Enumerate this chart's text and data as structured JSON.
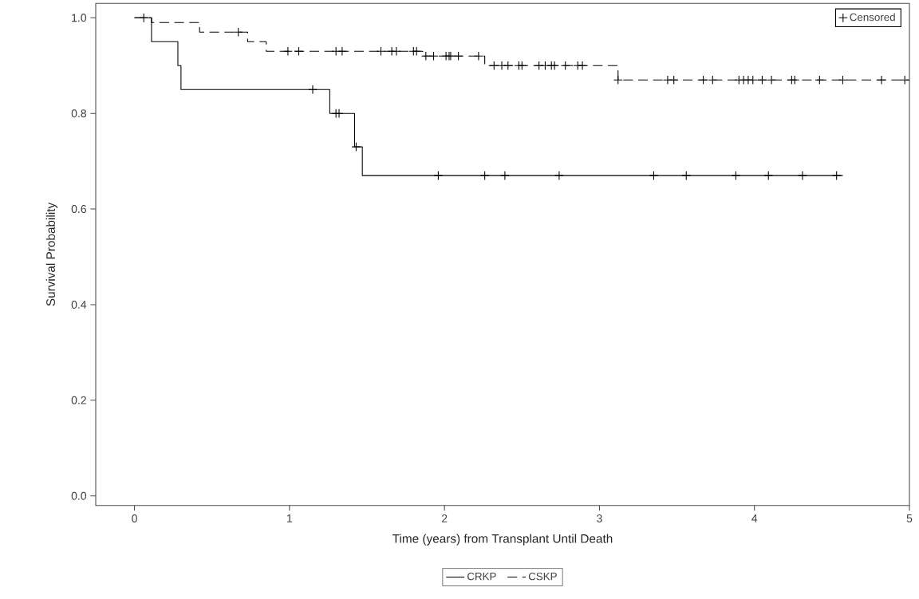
{
  "chart_data": {
    "type": "step",
    "xlabel": "Time (years) from Transplant Until Death",
    "ylabel": "Survival Probability",
    "xlim": [
      -0.25,
      5
    ],
    "ylim": [
      -0.02,
      1.03
    ],
    "xticks": [
      0,
      1,
      2,
      3,
      4,
      5
    ],
    "yticks": [
      {
        "value": 0,
        "label": "0.0"
      },
      {
        "value": 0.2,
        "label": "0.2"
      },
      {
        "value": 0.4,
        "label": "0.4"
      },
      {
        "value": 0.6,
        "label": "0.6"
      },
      {
        "value": 0.8,
        "label": "0.8"
      },
      {
        "value": 1,
        "label": "1.0"
      }
    ],
    "grid": false,
    "legend": "bottom",
    "series": [
      {
        "name": "CRKP",
        "color": "#000000",
        "line_style": "solid",
        "x": [
          0,
          0.11,
          0.28,
          0.3,
          1.26,
          1.42,
          1.47,
          4.57
        ],
        "values": [
          1,
          0.95,
          0.9,
          0.85,
          0.8,
          0.73,
          0.67,
          0.67
        ]
      },
      {
        "name": "CSKP",
        "color": "#000000",
        "line_style": "dashed",
        "x": [
          0,
          0.11,
          0.42,
          0.73,
          0.85,
          1.86,
          2.26,
          3.12,
          5.0
        ],
        "values": [
          1,
          0.99,
          0.97,
          0.95,
          0.93,
          0.92,
          0.9,
          0.87,
          0.87
        ]
      },
      {
        "name": "Censored",
        "type": "scatter",
        "color": "#000000",
        "marker": "cross",
        "x": [
          1.15,
          1.3,
          1.32,
          1.43,
          1.96,
          2.26,
          2.39,
          2.74,
          3.35,
          3.56,
          3.88,
          4.09,
          4.31,
          4.53,
          0.06,
          0.67,
          0.99,
          1.06,
          1.3,
          1.34,
          1.59,
          1.66,
          1.69,
          1.8,
          1.82,
          1.88,
          1.93,
          2.01,
          2.03,
          2.04,
          2.09,
          2.22,
          2.32,
          2.37,
          2.41,
          2.48,
          2.5,
          2.61,
          2.65,
          2.69,
          2.71,
          2.78,
          2.86,
          2.89,
          3.12,
          3.44,
          3.48,
          3.67,
          3.73,
          3.9,
          3.93,
          3.96,
          3.99,
          4.05,
          4.11,
          4.24,
          4.26,
          4.42,
          4.57,
          4.82,
          4.97
        ],
        "values": [
          0.85,
          0.8,
          0.8,
          0.73,
          0.67,
          0.67,
          0.67,
          0.67,
          0.67,
          0.67,
          0.67,
          0.67,
          0.67,
          0.67,
          1.0,
          0.97,
          0.93,
          0.93,
          0.93,
          0.93,
          0.93,
          0.93,
          0.93,
          0.93,
          0.93,
          0.92,
          0.92,
          0.92,
          0.92,
          0.92,
          0.92,
          0.92,
          0.9,
          0.9,
          0.9,
          0.9,
          0.9,
          0.9,
          0.9,
          0.9,
          0.9,
          0.9,
          0.9,
          0.9,
          0.87,
          0.87,
          0.87,
          0.87,
          0.87,
          0.87,
          0.87,
          0.87,
          0.87,
          0.87,
          0.87,
          0.87,
          0.87,
          0.87,
          0.87,
          0.87,
          0.87
        ]
      }
    ]
  }
}
